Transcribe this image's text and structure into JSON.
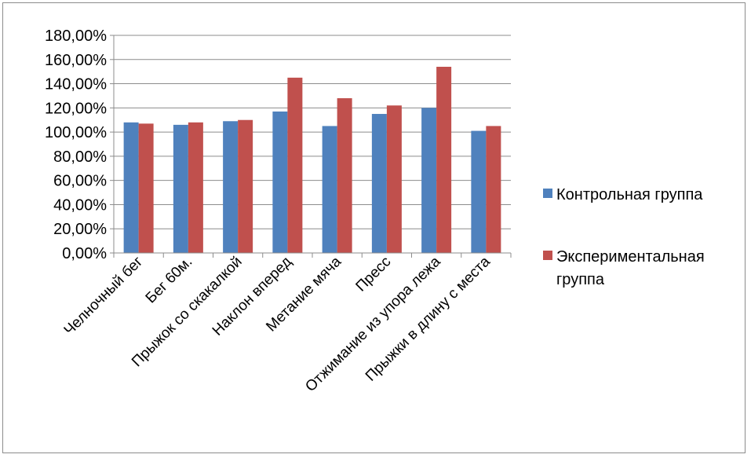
{
  "chart_data": {
    "type": "bar",
    "categories": [
      "Челночный бег",
      "Бег 60м.",
      "Прыжок со скакалкой",
      "Наклон вперед",
      "Метание мяча",
      "Пресс",
      "Отжимание из упора лежа",
      "Прыжки в длину с места"
    ],
    "series": [
      {
        "name": "Контрольная группа",
        "color": "#4f81bd",
        "values": [
          108,
          106,
          109,
          117,
          105,
          115,
          120,
          101
        ]
      },
      {
        "name": "Экспериментальная группа",
        "name_lines": [
          "Экспериментальная",
          "группа"
        ],
        "color": "#c0504d",
        "values": [
          107,
          108,
          110,
          145,
          128,
          122,
          154,
          105
        ]
      }
    ],
    "yticks": [
      "0,00%",
      "20,00%",
      "40,00%",
      "60,00%",
      "80,00%",
      "100,00%",
      "120,00%",
      "140,00%",
      "160,00%",
      "180,00%"
    ],
    "ylim": [
      0,
      180
    ],
    "title": "",
    "xlabel": "",
    "ylabel": "",
    "grid": true,
    "legend_position": "right"
  }
}
